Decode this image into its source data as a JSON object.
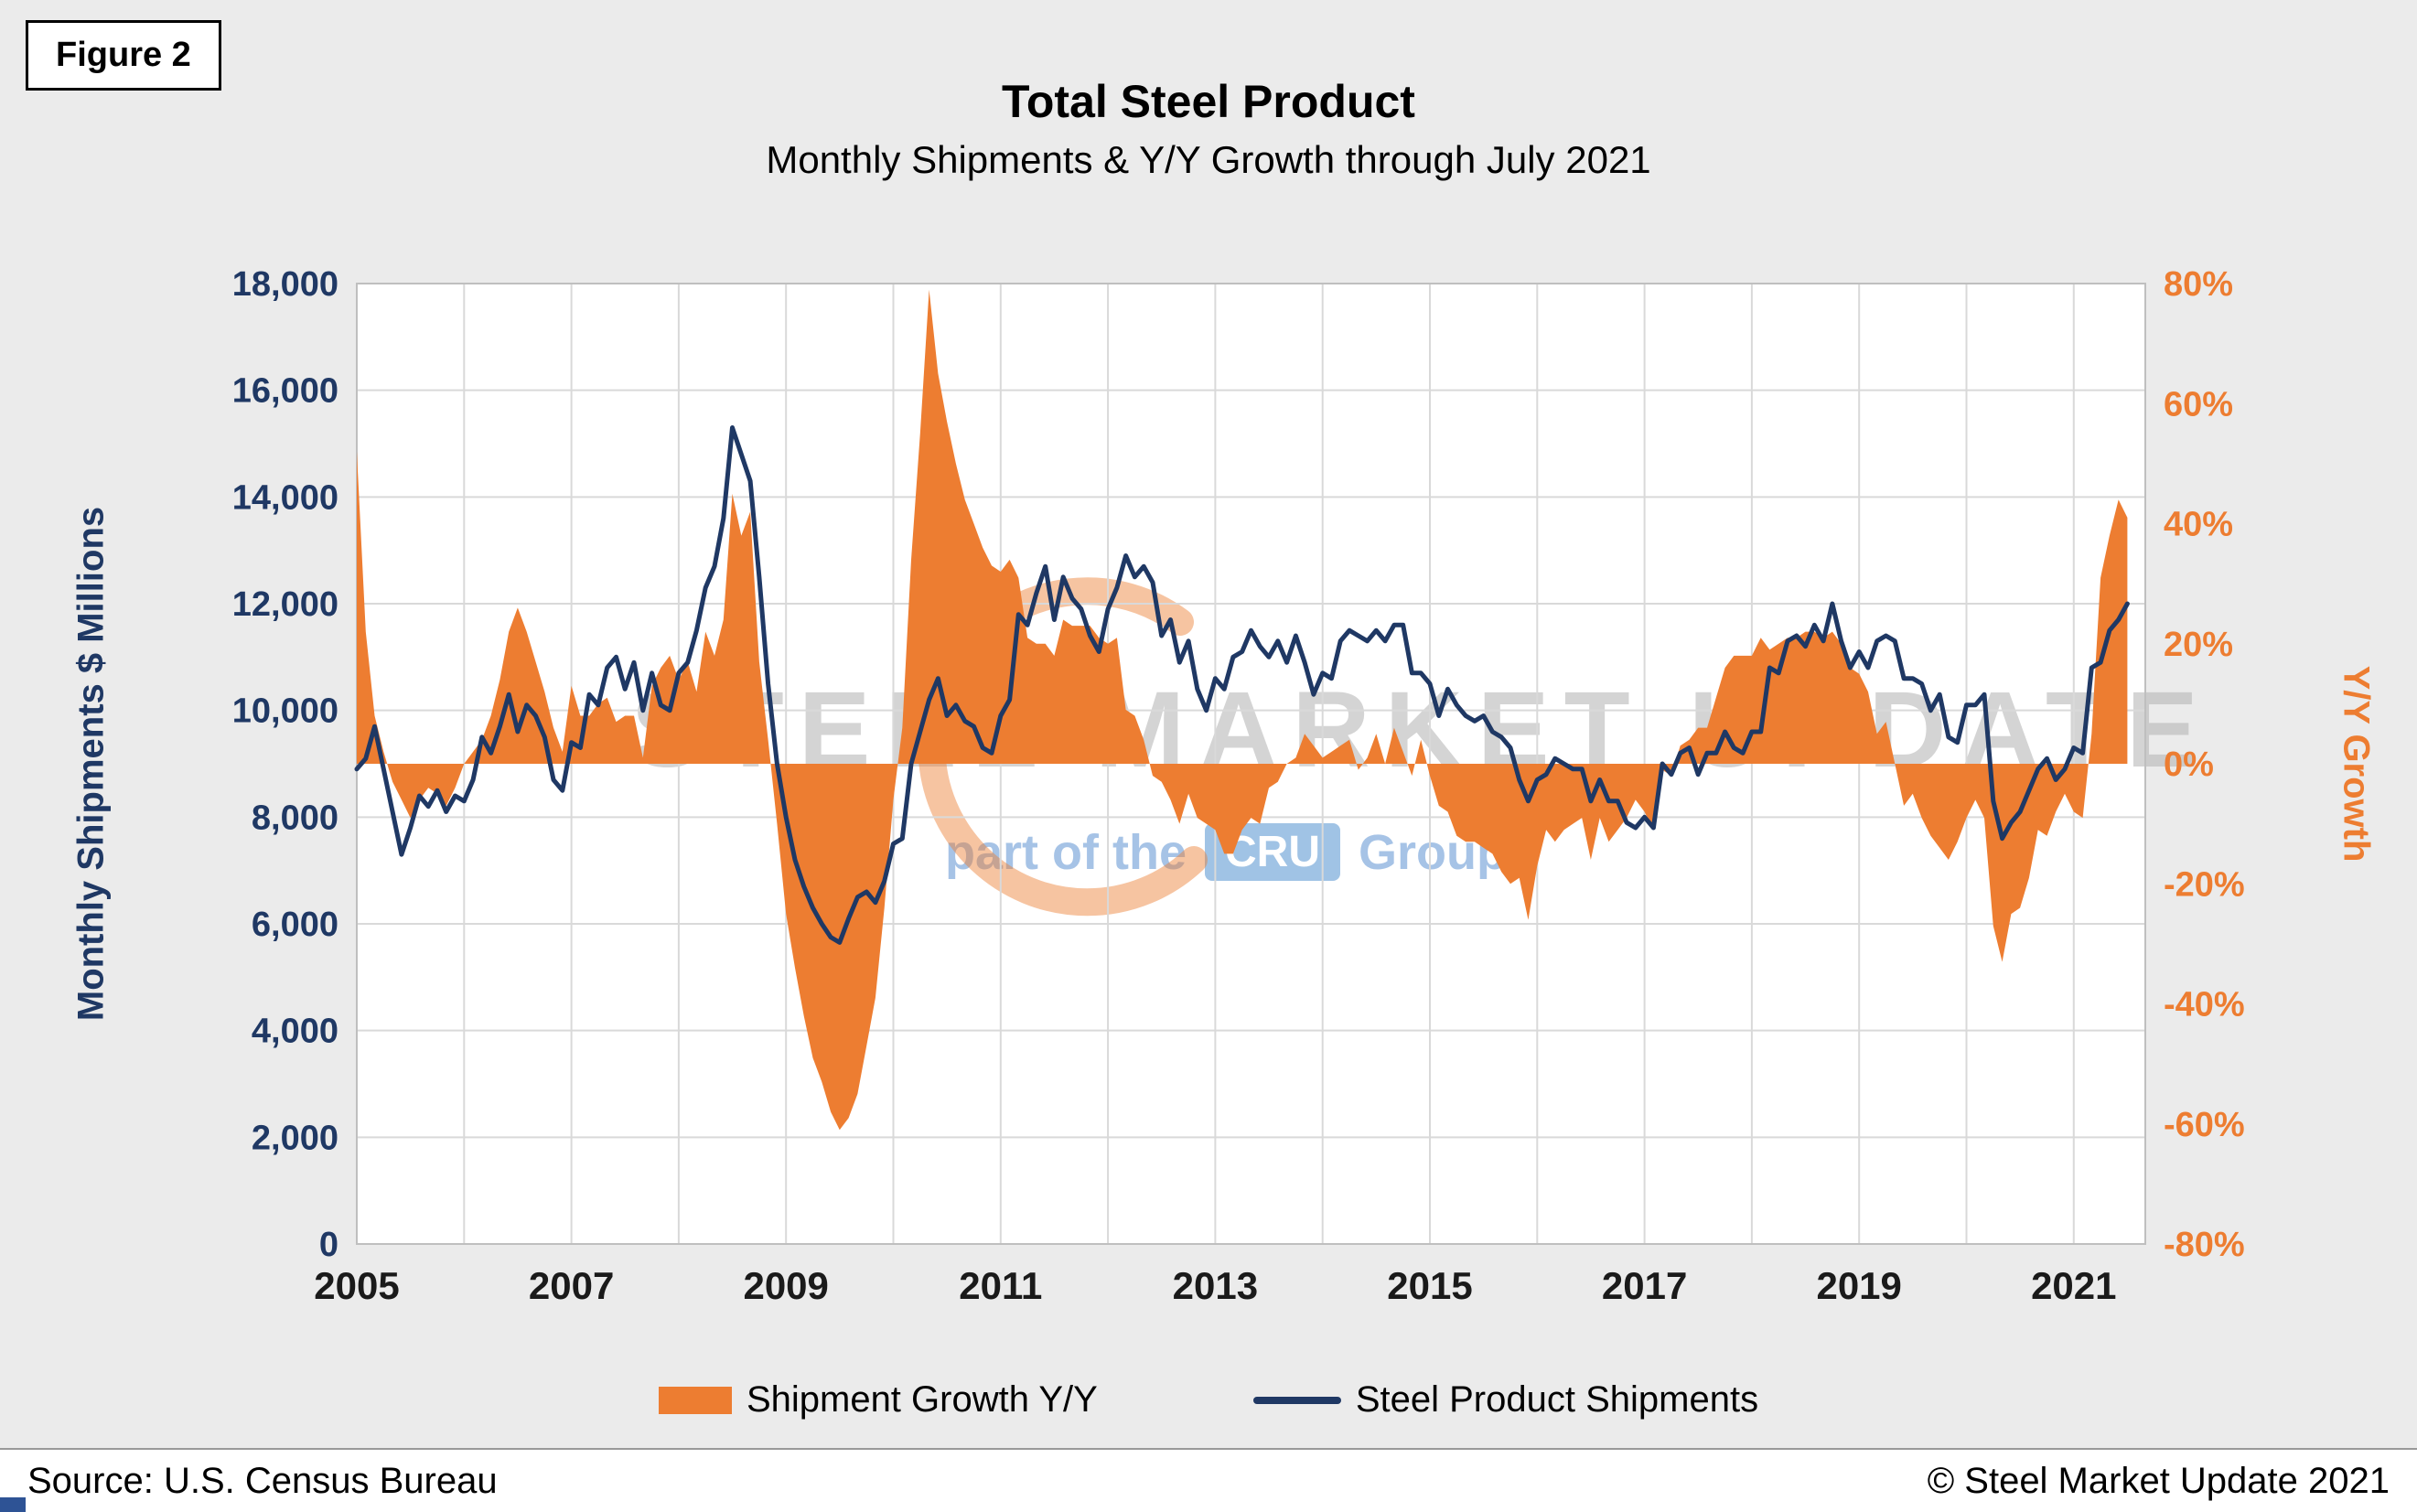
{
  "figure_label": "Figure 2",
  "title": "Total Steel Product",
  "subtitle": "Monthly Shipments & Y/Y Growth through July 2021",
  "source": "Source: U.S. Census Bureau",
  "copyright": "© Steel Market Update 2021",
  "watermark": {
    "line1": "STEEL MARKET UPDATE",
    "line2": "part of the",
    "logo": "CRU",
    "line3": "Group"
  },
  "colors": {
    "navy": "#1F3864",
    "orange": "#ED7D31",
    "grid": "#D9D9D9",
    "plot_border": "#BFBFBF",
    "background": "#EBEBEB"
  },
  "chart_data": {
    "type": "combo",
    "x_start": "2005-01",
    "x_end": "2021-07",
    "x_ticks": [
      2005,
      2007,
      2009,
      2011,
      2013,
      2015,
      2017,
      2019,
      2021
    ],
    "grid": true,
    "legend_position": "bottom",
    "left_axis": {
      "title": "Monthly Shipments $ Millions",
      "min": 0,
      "max": 18000,
      "step": 2000
    },
    "right_axis": {
      "title": "Y/Y Growth",
      "min": -80,
      "max": 80,
      "step": 20,
      "format": "percent"
    },
    "series": [
      {
        "name": "Shipment Growth Y/Y",
        "type": "area",
        "axis": "right",
        "color": "#ED7D31",
        "unit": "%",
        "values": [
          52,
          22,
          8,
          2,
          -3,
          -6,
          -9,
          -6,
          -4,
          -5,
          -7,
          -4,
          0,
          2,
          4,
          8,
          14,
          22,
          26,
          22,
          17,
          12,
          6,
          2,
          13,
          8,
          8,
          10,
          11,
          7,
          8,
          8,
          1,
          13,
          16,
          18,
          14,
          17,
          12,
          22,
          18,
          24,
          45,
          38,
          42,
          17,
          4,
          -10,
          -25,
          -34,
          -42,
          -49,
          -53,
          -58,
          -61,
          -59,
          -55,
          -47,
          -39,
          -24,
          -6,
          6,
          34,
          55,
          79,
          65,
          57,
          50,
          44,
          40,
          36,
          33,
          32,
          34,
          31,
          21,
          20,
          20,
          18,
          24,
          23,
          23,
          23,
          21,
          20,
          21,
          9,
          8,
          4,
          -2,
          -3,
          -6,
          -10,
          -5,
          -9,
          -10,
          -11,
          -15,
          -15,
          -11,
          -9,
          -10,
          -4,
          -3,
          0,
          1,
          5,
          3,
          1,
          2,
          3,
          4,
          -1,
          1,
          5,
          0,
          6,
          2,
          -2,
          4,
          -2,
          -7,
          -8,
          -12,
          -13,
          -13,
          -14,
          -15,
          -18,
          -20,
          -19,
          -26,
          -17,
          -11,
          -13,
          -11,
          -10,
          -9,
          -16,
          -9,
          -13,
          -11,
          -9,
          -6,
          -8,
          -11,
          -1,
          -2,
          3,
          4,
          6,
          6,
          11,
          16,
          18,
          18,
          18,
          21,
          19,
          20,
          21,
          21,
          22,
          22,
          21,
          22,
          20,
          16,
          15,
          12,
          5,
          7,
          0,
          -7,
          -5,
          -9,
          -12,
          -14,
          -16,
          -13,
          -9,
          -6,
          -9,
          -27,
          -33,
          -25,
          -24,
          -19,
          -11,
          -12,
          -8,
          -5,
          -8,
          -9,
          5,
          31,
          38,
          44,
          41
        ]
      },
      {
        "name": "Steel Product Shipments",
        "type": "line",
        "axis": "left",
        "color": "#1F3864",
        "unit": "$M",
        "values": [
          8900,
          9100,
          9700,
          8900,
          8100,
          7300,
          7800,
          8400,
          8200,
          8500,
          8100,
          8400,
          8300,
          8700,
          9500,
          9200,
          9700,
          10300,
          9600,
          10100,
          9900,
          9500,
          8700,
          8500,
          9400,
          9300,
          10300,
          10100,
          10800,
          11000,
          10400,
          10900,
          10000,
          10700,
          10100,
          10000,
          10700,
          10900,
          11500,
          12300,
          12700,
          13600,
          15300,
          14800,
          14300,
          12500,
          10500,
          9000,
          8000,
          7200,
          6700,
          6300,
          6000,
          5750,
          5650,
          6100,
          6500,
          6600,
          6400,
          6800,
          7500,
          7600,
          9000,
          9600,
          10200,
          10600,
          9900,
          10100,
          9800,
          9700,
          9300,
          9200,
          9900,
          10200,
          11800,
          11600,
          12200,
          12700,
          11700,
          12500,
          12100,
          11900,
          11400,
          11100,
          11900,
          12300,
          12900,
          12500,
          12700,
          12400,
          11400,
          11700,
          10900,
          11300,
          10400,
          10000,
          10600,
          10400,
          11000,
          11100,
          11500,
          11200,
          11000,
          11300,
          10900,
          11400,
          10900,
          10300,
          10700,
          10600,
          11300,
          11500,
          11400,
          11300,
          11500,
          11300,
          11600,
          11600,
          10700,
          10700,
          10500,
          9900,
          10400,
          10100,
          9900,
          9800,
          9900,
          9600,
          9500,
          9300,
          8700,
          8300,
          8700,
          8800,
          9100,
          9000,
          8900,
          8900,
          8300,
          8700,
          8300,
          8300,
          7900,
          7800,
          8000,
          7800,
          9000,
          8800,
          9200,
          9300,
          8800,
          9200,
          9200,
          9600,
          9300,
          9200,
          9600,
          9600,
          10800,
          10700,
          11300,
          11400,
          11200,
          11600,
          11300,
          12000,
          11300,
          10800,
          11100,
          10800,
          11300,
          11400,
          11300,
          10600,
          10600,
          10500,
          10000,
          10300,
          9500,
          9400,
          10100,
          10100,
          10300,
          8300,
          7600,
          7900,
          8100,
          8500,
          8900,
          9100,
          8700,
          8900,
          9300,
          9200,
          10800,
          10900,
          11500,
          11700,
          12000
        ]
      }
    ]
  }
}
